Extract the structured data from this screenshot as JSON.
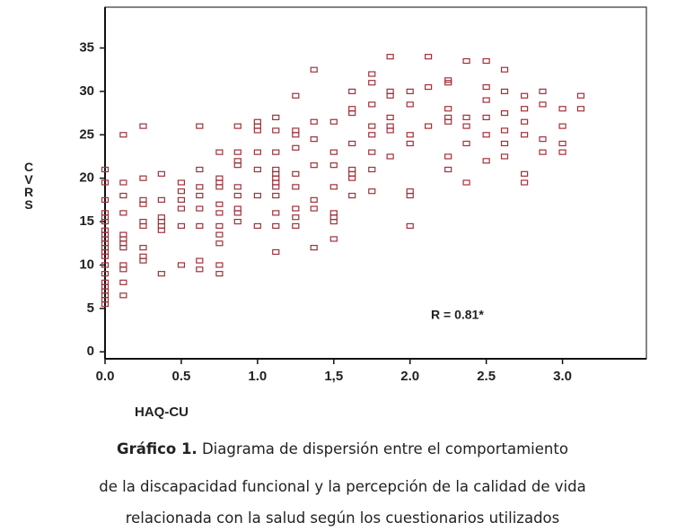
{
  "chart_data": {
    "type": "scatter",
    "x_label": "HAQ-CU",
    "y_label": "CVRS",
    "annotation": "R = 0.81*",
    "color": "#a0303a",
    "xlim": [
      0,
      3.55
    ],
    "ylim": [
      -0.8,
      39.7
    ],
    "xticks": [
      {
        "value": 0,
        "label": "0.0"
      },
      0.5,
      {
        "value": 1,
        "label": "1.0"
      },
      {
        "value": 1.5,
        "label": "1,5"
      },
      {
        "value": 2,
        "label": "2.0"
      },
      2.5,
      {
        "value": 3,
        "label": "3.0"
      }
    ],
    "yticks": [
      0,
      5,
      10,
      15,
      20,
      25,
      30,
      35
    ],
    "x": [
      0,
      0,
      0,
      0,
      0,
      0,
      0,
      0,
      0,
      0,
      0,
      0,
      0,
      0,
      0,
      0,
      0,
      0,
      0,
      0,
      0,
      0.12,
      0.12,
      0.12,
      0.12,
      0.12,
      0.12,
      0.12,
      0.12,
      0.12,
      0.12,
      0.12,
      0.12,
      0.25,
      0.25,
      0.25,
      0.25,
      0.25,
      0.25,
      0.25,
      0.25,
      0.25,
      0.37,
      0.37,
      0.37,
      0.37,
      0.37,
      0.37,
      0.37,
      0.5,
      0.5,
      0.5,
      0.5,
      0.5,
      0.5,
      0.62,
      0.62,
      0.62,
      0.62,
      0.62,
      0.62,
      0.62,
      0.62,
      0.75,
      0.75,
      0.75,
      0.75,
      0.75,
      0.75,
      0.75,
      0.75,
      0.75,
      0.75,
      0.75,
      0.87,
      0.87,
      0.87,
      0.87,
      0.87,
      0.87,
      0.87,
      0.87,
      0.87,
      1.0,
      1.0,
      1.0,
      1.0,
      1.0,
      1.0,
      1.0,
      1.12,
      1.12,
      1.12,
      1.12,
      1.12,
      1.12,
      1.12,
      1.12,
      1.12,
      1.12,
      1.12,
      1.12,
      1.25,
      1.25,
      1.25,
      1.25,
      1.25,
      1.25,
      1.25,
      1.25,
      1.25,
      1.37,
      1.37,
      1.37,
      1.37,
      1.37,
      1.37,
      1.37,
      1.5,
      1.5,
      1.5,
      1.5,
      1.5,
      1.5,
      1.5,
      1.5,
      1.62,
      1.62,
      1.62,
      1.62,
      1.62,
      1.62,
      1.62,
      1.62,
      1.75,
      1.75,
      1.75,
      1.75,
      1.75,
      1.75,
      1.75,
      1.75,
      1.87,
      1.87,
      1.87,
      1.87,
      1.87,
      1.87,
      1.87,
      2.0,
      2.0,
      2.0,
      2.0,
      2.0,
      2.0,
      2.0,
      2.12,
      2.12,
      2.12,
      2.25,
      2.25,
      2.25,
      2.25,
      2.25,
      2.25,
      2.25,
      2.37,
      2.37,
      2.37,
      2.37,
      2.37,
      2.5,
      2.5,
      2.5,
      2.5,
      2.5,
      2.5,
      2.62,
      2.62,
      2.62,
      2.62,
      2.62,
      2.62,
      2.75,
      2.75,
      2.75,
      2.75,
      2.75,
      2.75,
      2.87,
      2.87,
      2.87,
      2.87,
      3.0,
      3.0,
      3.0,
      3.0,
      3.12,
      3.12
    ],
    "values": [
      21,
      19.5,
      17.5,
      16,
      15.5,
      15,
      14,
      13.5,
      13,
      12.5,
      12,
      11.5,
      11,
      10,
      9,
      8,
      7.5,
      7,
      6.5,
      6,
      5.5,
      25,
      19.5,
      18,
      16,
      13.5,
      13,
      12.5,
      12,
      10,
      9.5,
      8,
      6.5,
      26,
      20,
      17.5,
      17,
      15,
      14.5,
      12,
      11,
      10.5,
      20.5,
      17.5,
      15.5,
      15,
      14.5,
      14,
      9,
      19.5,
      18.5,
      17.5,
      16.5,
      14.5,
      10,
      26,
      21,
      19,
      18,
      16.5,
      14.5,
      10.5,
      9.5,
      23,
      20,
      19.5,
      19,
      17,
      16,
      14.5,
      13.5,
      12.5,
      10,
      9,
      26,
      23,
      22,
      21.5,
      19,
      18,
      16.5,
      16,
      15,
      26.5,
      26,
      25.5,
      23,
      21,
      18,
      14.5,
      27,
      25.5,
      23,
      21,
      20.5,
      20,
      19.5,
      19,
      18,
      16,
      14.5,
      11.5,
      29.5,
      25.5,
      25,
      23.5,
      20.5,
      19,
      16.5,
      15.5,
      14.5,
      32.5,
      26.5,
      24.5,
      21.5,
      17.5,
      16.5,
      12,
      26.5,
      23,
      21.5,
      19,
      16,
      15.5,
      15,
      13,
      30,
      28,
      27.5,
      24,
      21,
      20.5,
      20,
      18,
      32,
      31,
      28.5,
      26,
      25,
      23,
      21,
      18.5,
      34,
      30,
      29.5,
      27,
      26,
      25.5,
      22.5,
      30,
      28.5,
      25,
      24,
      18.5,
      18,
      14.5,
      34,
      30.5,
      26,
      31,
      31.3,
      28,
      27,
      26.5,
      22.5,
      21,
      33.5,
      27,
      26,
      24,
      19.5,
      33.5,
      30.5,
      29,
      27,
      25,
      22,
      32.5,
      30,
      27.5,
      25.5,
      24,
      22.5,
      29.5,
      28,
      26.5,
      25,
      20.5,
      19.5,
      30,
      28.5,
      24.5,
      23,
      28,
      26,
      24,
      23,
      29.5,
      28
    ]
  },
  "caption": {
    "label": "Gráfico 1.",
    "lines": [
      " Diagrama de dispersión entre el comportamiento",
      "de la discapacidad funcional y la percepción de la calidad de vida",
      "relacionada con la salud según los cuestionarios utilizados"
    ]
  }
}
